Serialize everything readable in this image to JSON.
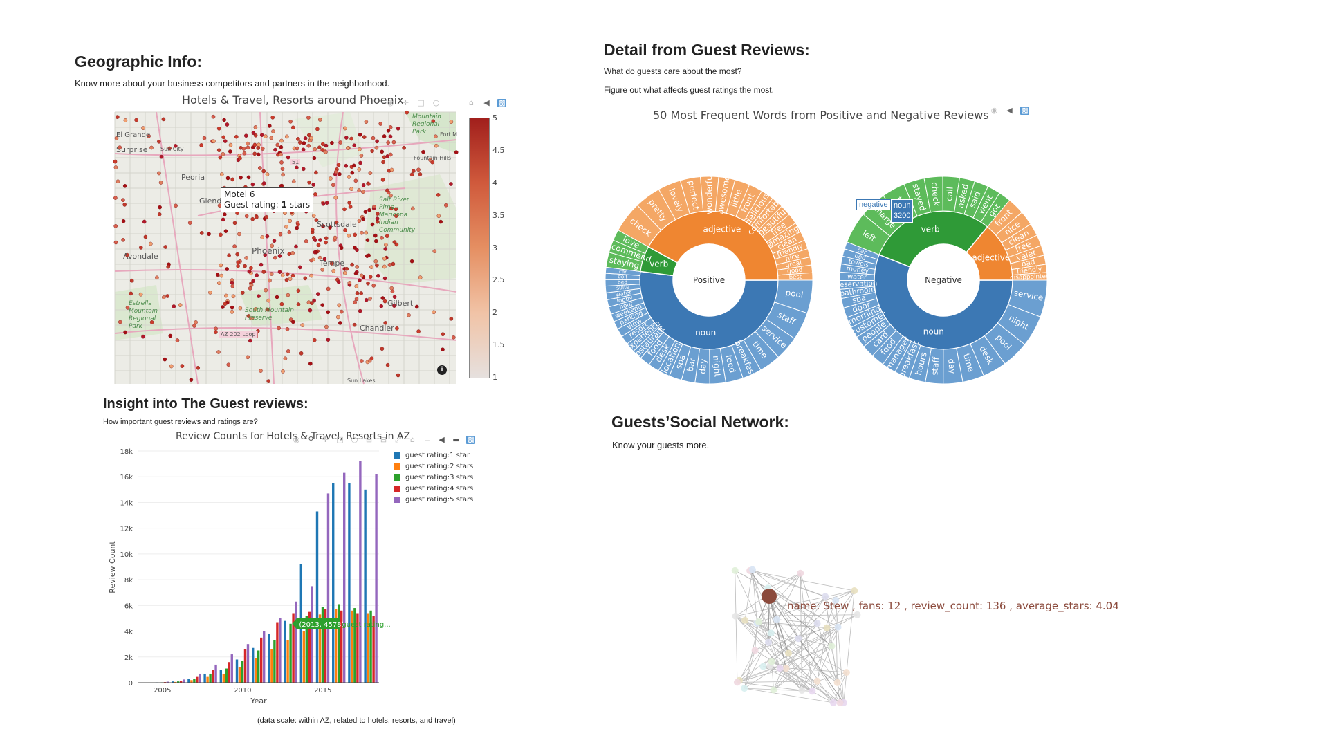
{
  "geo": {
    "heading": "Geographic Info:",
    "subtitle": "Know more about your business competitors and partners in the neighborhood.",
    "map_title": "Hotels & Travel, Resorts around Phoenix",
    "tooltip": {
      "name": "Motel 6",
      "rating_prefix": "Guest rating: ",
      "rating_value": "1",
      "rating_suffix": " stars"
    },
    "colorbar_ticks": [
      "5",
      "4.5",
      "4",
      "3.5",
      "3",
      "2.5",
      "2",
      "1.5",
      "1"
    ],
    "colorbar_colors": {
      "high": "#a11f1c",
      "low": "#e6e0de"
    },
    "places": {
      "surprise": "Surprise",
      "sun_city": "Sun City",
      "peoria": "Peoria",
      "glendale": "Glendale",
      "phoenix": "Phoenix",
      "scottsdale": "Scottsdale",
      "tempe": "Tempe",
      "avondale": "Avondale",
      "gilbert": "Gilbert",
      "chandler": "Chandler",
      "fountain_hills": "Fountain Hills",
      "sun_lakes": "Sun Lakes",
      "el_grande": "El Grande",
      "fort_mc": "Fort M",
      "mountain_park": "Mountain\nRegional\nPark",
      "salt_river": "Salt River\nPima -\nMaricopa\nIndian\nCommunity",
      "south_mountain": "South Mountain\nPreserve",
      "estrella": "Estrella\nMountain\nRegional\nPark",
      "az202": "AZ 202 Loop",
      "i51": "51",
      "info": "i"
    }
  },
  "bar": {
    "heading": "Insight into The Guest reviews:",
    "subtitle": "How important guest reviews and ratings are?",
    "footnote": "(data scale: within AZ, related to hotels, resorts, and travel)",
    "hover": {
      "value": "(2013, 4578)",
      "series": "guest rating..."
    }
  },
  "chart_data": [
    {
      "type": "bar",
      "title": "Review Counts for Hotels & Travel, Resorts in AZ",
      "xlabel": "Year",
      "ylabel": "Review Count",
      "x_ticks": [
        "2005",
        "2010",
        "2015"
      ],
      "y_ticks": [
        "0",
        "2k",
        "4k",
        "6k",
        "8k",
        "10k",
        "12k",
        "14k",
        "16k",
        "18k"
      ],
      "ylim": [
        0,
        18000
      ],
      "legend_position": "top-right",
      "categories": [
        2004,
        2005,
        2006,
        2007,
        2008,
        2009,
        2010,
        2011,
        2012,
        2013,
        2014,
        2015,
        2016,
        2017,
        2018
      ],
      "series": [
        {
          "name": "guest rating:1 star",
          "color": "#1f77b4",
          "values": [
            0,
            30,
            100,
            300,
            700,
            1000,
            1800,
            2700,
            3800,
            4800,
            9200,
            13300,
            15500,
            15500,
            15000
          ]
        },
        {
          "name": "guest rating:2 stars",
          "color": "#ff7f0e",
          "values": [
            0,
            20,
            60,
            200,
            450,
            700,
            1200,
            1900,
            2600,
            3300,
            4000,
            5300,
            5700,
            5600,
            5400
          ]
        },
        {
          "name": "guest rating:3 stars",
          "color": "#2ca02c",
          "values": [
            0,
            30,
            100,
            300,
            700,
            1100,
            1700,
            2500,
            3300,
            4578,
            5200,
            5900,
            6100,
            5800,
            5600
          ]
        },
        {
          "name": "guest rating:4 stars",
          "color": "#d62728",
          "values": [
            0,
            50,
            150,
            450,
            1000,
            1600,
            2600,
            3500,
            4700,
            5400,
            5500,
            5700,
            5600,
            5400,
            5200
          ]
        },
        {
          "name": "guest rating:5 stars",
          "color": "#9467bd",
          "values": [
            0,
            80,
            250,
            700,
            1400,
            2200,
            3000,
            4000,
            5000,
            6300,
            7500,
            14700,
            16300,
            17200,
            16200
          ]
        }
      ]
    },
    {
      "type": "sunburst",
      "title": "50 Most Frequent Words from Positive and Negative Reviews",
      "charts": [
        {
          "root": "Positive",
          "children": [
            {
              "label": "noun",
              "value": 52,
              "color": "#3c78b4",
              "leaf_color": "#6b9fd1",
              "leaves": [
                "pool",
                "staff",
                "service",
                "time",
                "breakfast",
                "food",
                "night",
                "day",
                "bar",
                "spa",
                "location",
                "desk",
                "food",
                "restaurant",
                "experience",
                "resort",
                "view",
                "parking",
                "weekend",
                "hour",
                "lobby",
                "water",
                "suite",
                "bed",
                "golf",
                "car"
              ]
            },
            {
              "label": "verb",
              "value": 6,
              "color": "#2f9a37",
              "leaf_color": "#5dbb5b",
              "leaves": [
                "staying",
                "recommend",
                "love"
              ]
            },
            {
              "label": "adjective",
              "value": 42,
              "color": "#ef8631",
              "leaf_color": "#f4a765",
              "leaves": [
                "check",
                "pretty",
                "lovely",
                "perfect",
                "wonderful",
                "awesome",
                "little",
                "front",
                "delicious",
                "comfortable",
                "beautiful",
                "free",
                "amazing",
                "clean",
                "friendly",
                "nice",
                "great",
                "good",
                "best"
              ]
            }
          ]
        },
        {
          "root": "Negative",
          "children": [
            {
              "label": "noun",
              "value": 56,
              "color": "#3c78b4",
              "leaf_color": "#6b9fd1",
              "leaves": [
                "service",
                "night",
                "pool",
                "desk",
                "time",
                "day",
                "staff",
                "hours",
                "breakfast",
                "manager",
                "food",
                "card",
                "people",
                "customer",
                "morning",
                "door",
                "spa",
                "bathroom",
                "reservation",
                "water",
                "money",
                "towels",
                "bed",
                "car"
              ]
            },
            {
              "label": "verb",
              "value": 30,
              "color": "#2f9a37",
              "leaf_color": "#5dbb5b",
              "leaves": [
                "left",
                "charge",
                "told",
                "stayed",
                "check",
                "call",
                "asked",
                "said",
                "went",
                "got"
              ]
            },
            {
              "label": "adjective",
              "value": 14,
              "color": "#ef8631",
              "leaf_color": "#f4a765",
              "leaves": [
                "front",
                "nice",
                "clean",
                "free",
                "valet",
                "bad",
                "friendly",
                "disappointed"
              ]
            }
          ]
        }
      ]
    },
    {
      "type": "network",
      "hover_label": "name: Stew , fans: 12 , review_count: 136 , average_stars: 4.04",
      "nodes": 40
    }
  ],
  "reviews": {
    "heading": "Detail from Guest Reviews:",
    "line1": "What do guests care about the most?",
    "line2": "Figure out what affects guest ratings the most.",
    "hover": {
      "series": "negative",
      "label": "noun",
      "value": "3200"
    }
  },
  "social": {
    "heading": "Guests’Social Network:",
    "subtitle": "Know your guests more."
  },
  "icons": {
    "camera": "camera-icon",
    "zoom": "zoom-icon",
    "pan": "pan-icon",
    "select": "box-select-icon",
    "lasso": "lasso-icon",
    "home": "home-icon",
    "spike": "spike-icon",
    "plotly": "plotly-logo-icon"
  }
}
